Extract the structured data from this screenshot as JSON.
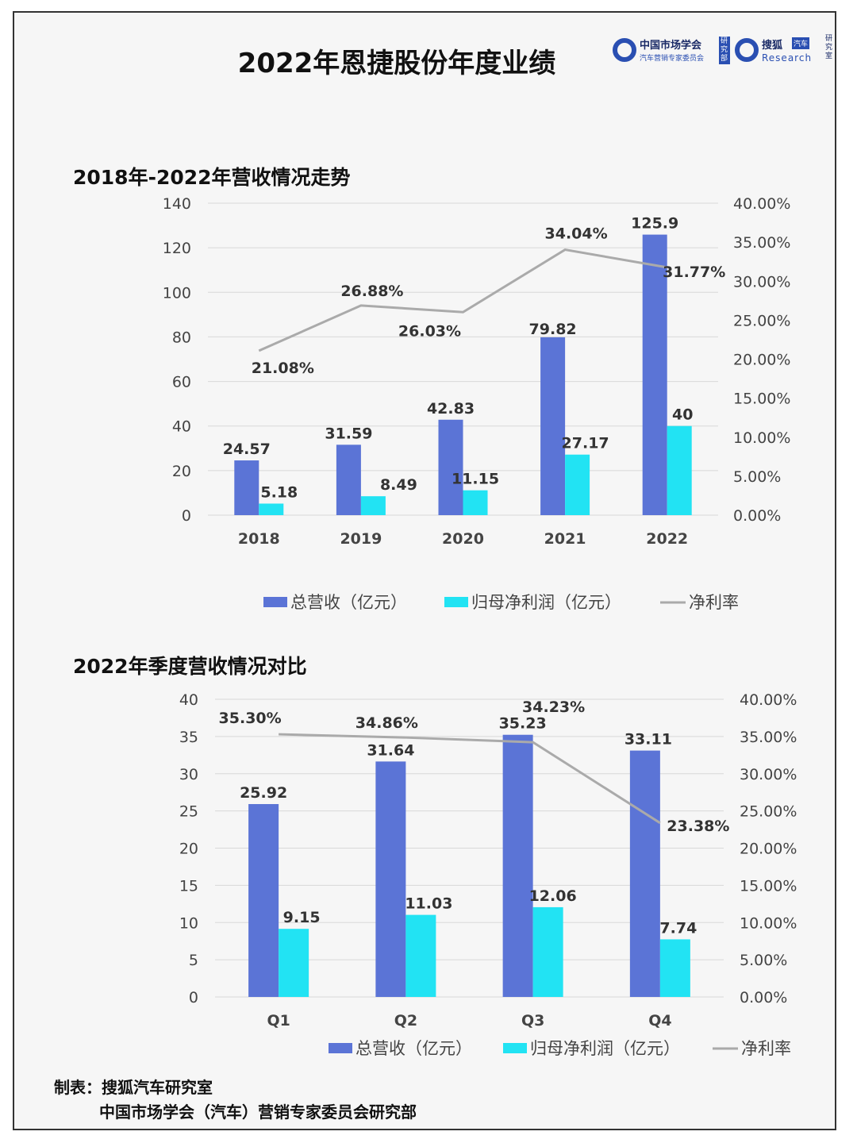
{
  "page_title": "2022年恩捷股份年度业绩",
  "logo": {
    "org1_line1": "中国市场学会",
    "org1_line2": "汽车营销专家委员会",
    "org1_badge": "研究部",
    "org2_name": "搜狐",
    "org2_badge": "汽车",
    "org2_sub": "Research",
    "org2_tag": "研究室"
  },
  "colors": {
    "revenue": "#5b74d6",
    "profit": "#22e3f3",
    "rate": "#aaaaaa"
  },
  "chart_data": [
    {
      "type": "bar",
      "title": "2018年-2022年营收情况走势",
      "categories": [
        "2018",
        "2019",
        "2020",
        "2021",
        "2022"
      ],
      "series": [
        {
          "name": "总营收（亿元）",
          "values": [
            24.57,
            31.59,
            42.83,
            79.82,
            125.9
          ],
          "labels": [
            "24.57",
            "31.59",
            "42.83",
            "79.82",
            "125.9"
          ]
        },
        {
          "name": "归母净利润（亿元）",
          "values": [
            5.18,
            8.49,
            11.15,
            27.17,
            40
          ],
          "labels": [
            "5.18",
            "8.49",
            "11.15",
            "27.17",
            "40"
          ]
        },
        {
          "name": "净利率",
          "type": "line",
          "axis": "right",
          "values": [
            21.08,
            26.88,
            26.03,
            34.04,
            31.77
          ],
          "labels": [
            "21.08%",
            "26.88%",
            "26.03%",
            "34.04%",
            "31.77%"
          ]
        }
      ],
      "ylim": [
        0,
        140
      ],
      "yticks": [
        "0",
        "20",
        "40",
        "60",
        "80",
        "100",
        "120",
        "140"
      ],
      "y2lim": [
        0,
        40
      ],
      "y2ticks": [
        "0.00%",
        "5.00%",
        "10.00%",
        "15.00%",
        "20.00%",
        "25.00%",
        "30.00%",
        "35.00%",
        "40.00%"
      ],
      "grid": true,
      "legend": "bottom-center"
    },
    {
      "type": "bar",
      "title": "2022年季度营收情况对比",
      "categories": [
        "Q1",
        "Q2",
        "Q3",
        "Q4"
      ],
      "series": [
        {
          "name": "总营收（亿元）",
          "values": [
            25.92,
            31.64,
            35.23,
            33.11
          ],
          "labels": [
            "25.92",
            "31.64",
            "35.23",
            "33.11"
          ]
        },
        {
          "name": "归母净利润（亿元）",
          "values": [
            9.15,
            11.03,
            12.06,
            7.74
          ],
          "labels": [
            "9.15",
            "11.03",
            "12.06",
            "7.74"
          ]
        },
        {
          "name": "净利率",
          "type": "line",
          "axis": "right",
          "values": [
            35.3,
            34.86,
            34.23,
            23.38
          ],
          "labels": [
            "35.30%",
            "34.86%",
            "34.23%",
            "23.38%"
          ]
        }
      ],
      "ylim": [
        0,
        40
      ],
      "yticks": [
        "0",
        "5",
        "10",
        "15",
        "20",
        "25",
        "30",
        "35",
        "40"
      ],
      "y2lim": [
        0,
        40
      ],
      "y2ticks": [
        "0.00%",
        "5.00%",
        "10.00%",
        "15.00%",
        "20.00%",
        "25.00%",
        "30.00%",
        "35.00%",
        "40.00%"
      ],
      "grid": true,
      "legend": "bottom-center"
    }
  ],
  "footer": {
    "line1": "制表：搜狐汽车研究室",
    "line2": "中国市场学会（汽车）营销专家委员会研究部"
  }
}
